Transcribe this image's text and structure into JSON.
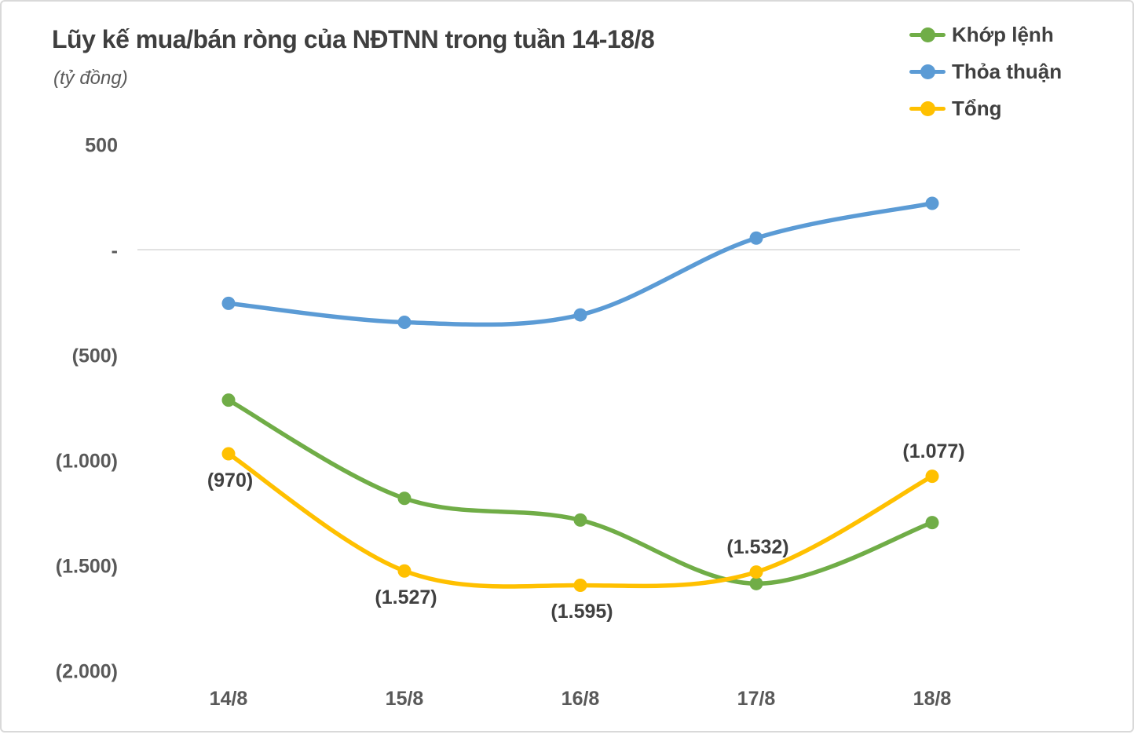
{
  "page": {
    "title": "Lũy kế mua/bán ròng của NĐTNN trong tuần 14-18/8",
    "subtitle": "(tỷ đồng)"
  },
  "legend": {
    "items": [
      {
        "label": "Khớp lệnh",
        "color": "#70ad47"
      },
      {
        "label": "Thỏa thuận",
        "color": "#5b9bd5"
      },
      {
        "label": "Tổng",
        "color": "#ffc000"
      }
    ],
    "position": "top-right"
  },
  "chart_data": {
    "type": "line",
    "title": "Lũy kế mua/bán ròng của NĐTNN trong tuần 14-18/8",
    "unit": "tỷ đồng",
    "categories": [
      "14/8",
      "15/8",
      "16/8",
      "17/8",
      "18/8"
    ],
    "series": [
      {
        "name": "Khớp lệnh",
        "color": "#70ad47",
        "values": [
          -715,
          -1182,
          -1285,
          -1587,
          -1297
        ]
      },
      {
        "name": "Thỏa thuận",
        "color": "#5b9bd5",
        "values": [
          -255,
          -345,
          -310,
          55,
          220
        ]
      },
      {
        "name": "Tổng",
        "color": "#ffc000",
        "values": [
          -970,
          -1527,
          -1595,
          -1532,
          -1077
        ],
        "data_labels": [
          {
            "text": "(970)",
            "placement": "below"
          },
          {
            "text": "(1.527)",
            "placement": "below"
          },
          {
            "text": "(1.595)",
            "placement": "below"
          },
          {
            "text": "(1.532)",
            "placement": "above"
          },
          {
            "text": "(1.077)",
            "placement": "above"
          }
        ]
      }
    ],
    "y_axis": {
      "ticks": [
        {
          "label": "500",
          "value": 500
        },
        {
          "label": "-",
          "value": 0
        },
        {
          "label": "(500)",
          "value": -500
        },
        {
          "label": "(1.000)",
          "value": -1000
        },
        {
          "label": "(1.500)",
          "value": -1500
        },
        {
          "label": "(2.000)",
          "value": -2000
        }
      ]
    },
    "ylim": [
      -2000,
      500
    ],
    "grid": "zero-line-only",
    "line_style": "smooth",
    "legend_position": "top-right"
  },
  "colors": {
    "title_text": "#3f3f3f",
    "axis_text": "#595959",
    "label_text": "#404040",
    "gridline": "#d9d9d9",
    "frame_border": "#d9d9d9"
  }
}
